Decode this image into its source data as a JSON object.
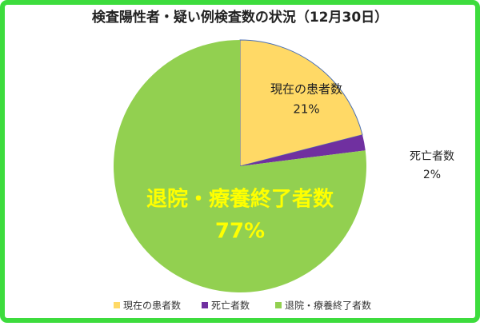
{
  "chart_data": {
    "type": "pie",
    "title": "検査陽性者・疑い例検査数の状況（12月30日）",
    "categories": [
      "現在の患者数",
      "死亡者数",
      "退院・療養終了者数"
    ],
    "values": [
      21,
      2,
      77
    ],
    "value_labels": [
      "21%",
      "2%",
      "77%"
    ],
    "colors": [
      "#ffd966",
      "#7030a0",
      "#92d050"
    ],
    "legend": "bottom"
  }
}
